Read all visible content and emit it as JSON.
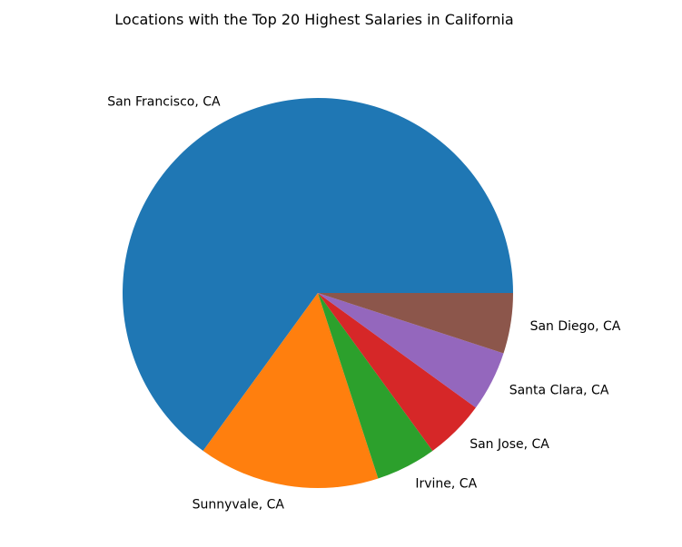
{
  "chart_data": {
    "type": "pie",
    "title": "Locations with the Top 20 Highest Salaries in California",
    "categories": [
      "San Francisco, CA",
      "Sunnyvale, CA",
      "Irvine, CA",
      "San Jose, CA",
      "Santa Clara, CA",
      "San Diego, CA"
    ],
    "values": [
      13,
      3,
      1,
      1,
      1,
      1
    ],
    "colors": [
      "#1f77b4",
      "#ff7f0e",
      "#2ca02c",
      "#d62728",
      "#9467bd",
      "#8c564b"
    ],
    "start_angle_deg": 0,
    "direction": "counterclockwise",
    "legend": "none"
  }
}
